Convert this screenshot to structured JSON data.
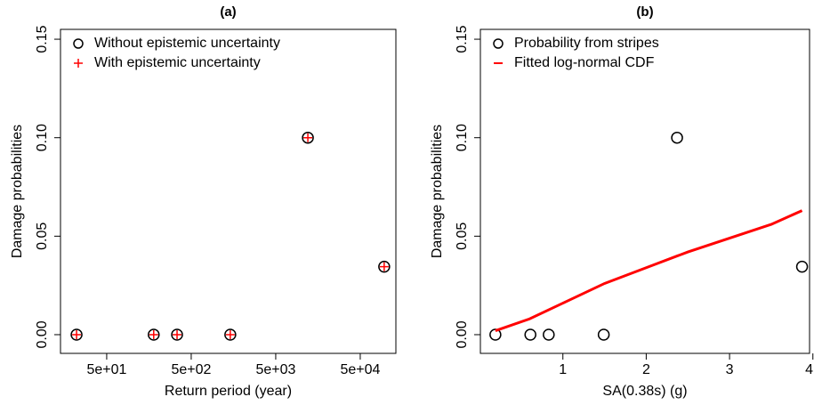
{
  "chart_data": [
    {
      "type": "scatter",
      "title": "(a)",
      "x_label": "Return period (year)",
      "y_label": "Damage probabilities",
      "xscale": "log",
      "xlim": [
        14.2,
        132000
      ],
      "ylim": [
        -0.0095,
        0.155
      ],
      "xticks": [
        {
          "value": 50,
          "label": "5e+01"
        },
        {
          "value": 500,
          "label": "5e+02"
        },
        {
          "value": 5000,
          "label": "5e+03"
        },
        {
          "value": 50000,
          "label": "5e+04"
        }
      ],
      "yticks": [
        {
          "value": 0,
          "label": "0.00"
        },
        {
          "value": 0.05,
          "label": "0.05"
        },
        {
          "value": 0.1,
          "label": "0.10"
        },
        {
          "value": 0.15,
          "label": "0.15"
        }
      ],
      "legend": "top-left",
      "series": [
        {
          "name": "Without epistemic uncertainty",
          "color": "#000000",
          "marker": "circle",
          "x": [
            22,
            180,
            340,
            1450,
            12000,
            96000
          ],
          "values": [
            0,
            0,
            0,
            0,
            0.1,
            0.0345
          ]
        },
        {
          "name": "With epistemic uncertainty",
          "color": "#ff0000",
          "marker": "plus",
          "x": [
            22,
            180,
            340,
            1450,
            12000,
            96000
          ],
          "values": [
            0,
            0,
            0,
            0,
            0.1,
            0.0345
          ]
        }
      ]
    },
    {
      "type": "scatter",
      "title": "(b)",
      "x_label": "SA(0.38s) (g)",
      "y_label": "Damage probabilities",
      "xscale": "linear",
      "xlim": [
        0.01,
        3.96
      ],
      "ylim": [
        -0.0095,
        0.155
      ],
      "xticks": [
        1,
        2,
        3,
        4
      ],
      "yticks": [
        {
          "value": 0,
          "label": "0.00"
        },
        {
          "value": 0.05,
          "label": "0.05"
        },
        {
          "value": 0.1,
          "label": "0.10"
        },
        {
          "value": 0.15,
          "label": "0.15"
        }
      ],
      "legend": "top-left",
      "series": [
        {
          "name": "Probability from stripes",
          "color": "#000000",
          "marker": "circle",
          "x": [
            0.19,
            0.61,
            0.83,
            1.49,
            2.37,
            3.87
          ],
          "values": [
            0,
            0,
            0,
            0,
            0.1,
            0.0345
          ]
        },
        {
          "name": "Fitted log-normal CDF",
          "color": "#ff0000",
          "marker": "line",
          "x": [
            0.19,
            0.6,
            1,
            1.5,
            2,
            2.5,
            3,
            3.5,
            3.87
          ],
          "values": [
            0.002,
            0.008,
            0.016,
            0.026,
            0.034,
            0.042,
            0.049,
            0.056,
            0.063
          ]
        }
      ]
    }
  ]
}
